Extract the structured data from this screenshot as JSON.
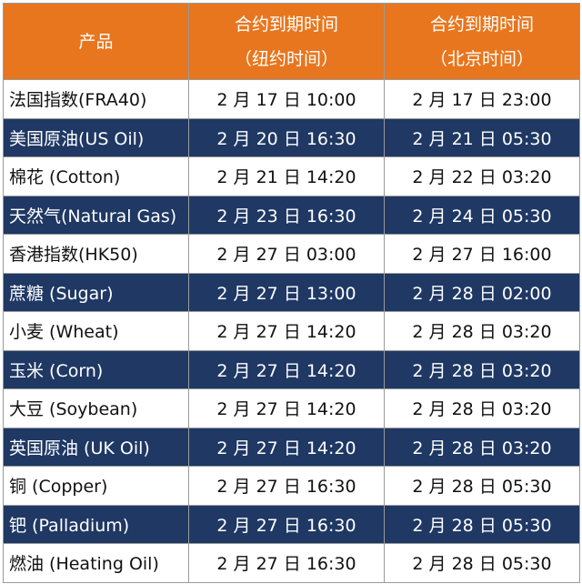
{
  "table": {
    "header": [
      [
        "产品"
      ],
      [
        "合约到期时间",
        "（纽约时间）"
      ],
      [
        "合约到期时间",
        "（北京时间）"
      ]
    ],
    "rows": [
      [
        "法国指数(FRA40)",
        "2 月 17 日 10:00",
        "2 月 17 日 23:00"
      ],
      [
        "美国原油(US Oil)",
        "2 月 20 日 16:30",
        "2 月 21 日 05:30"
      ],
      [
        "棉花 (Cotton)",
        "2 月 21 日 14:20",
        "2 月 22 日 03:20"
      ],
      [
        "天然气(Natural Gas)",
        "2 月 23 日 16:30",
        "2 月 24 日 05:30"
      ],
      [
        "香港指数(HK50)",
        "2 月 27 日 03:00",
        "2 月 27 日 16:00"
      ],
      [
        "蔗糖 (Sugar)",
        "2 月 27 日 13:00",
        "2 月 28 日 02:00"
      ],
      [
        "小麦 (Wheat)",
        "2 月 27 日 14:20",
        "2 月 28 日 03:20"
      ],
      [
        "玉米 (Corn)",
        "2 月 27 日 14:20",
        "2 月 28 日 03:20"
      ],
      [
        "大豆 (Soybean)",
        "2 月 27 日 14:20",
        "2 月 28 日 03:20"
      ],
      [
        "英国原油 (UK Oil)",
        "2 月 27 日 14:20",
        "2 月 28 日 03:20"
      ],
      [
        "铜 (Copper)",
        "2 月 27 日 16:30",
        "2 月 28 日 05:30"
      ],
      [
        "钯 (Palladium)",
        "2 月 27 日 16:30",
        "2 月 28 日 05:30"
      ],
      [
        "燃油 (Heating Oil)",
        "2 月 27 日 16:30",
        "2 月 28 日 05:30"
      ]
    ]
  }
}
